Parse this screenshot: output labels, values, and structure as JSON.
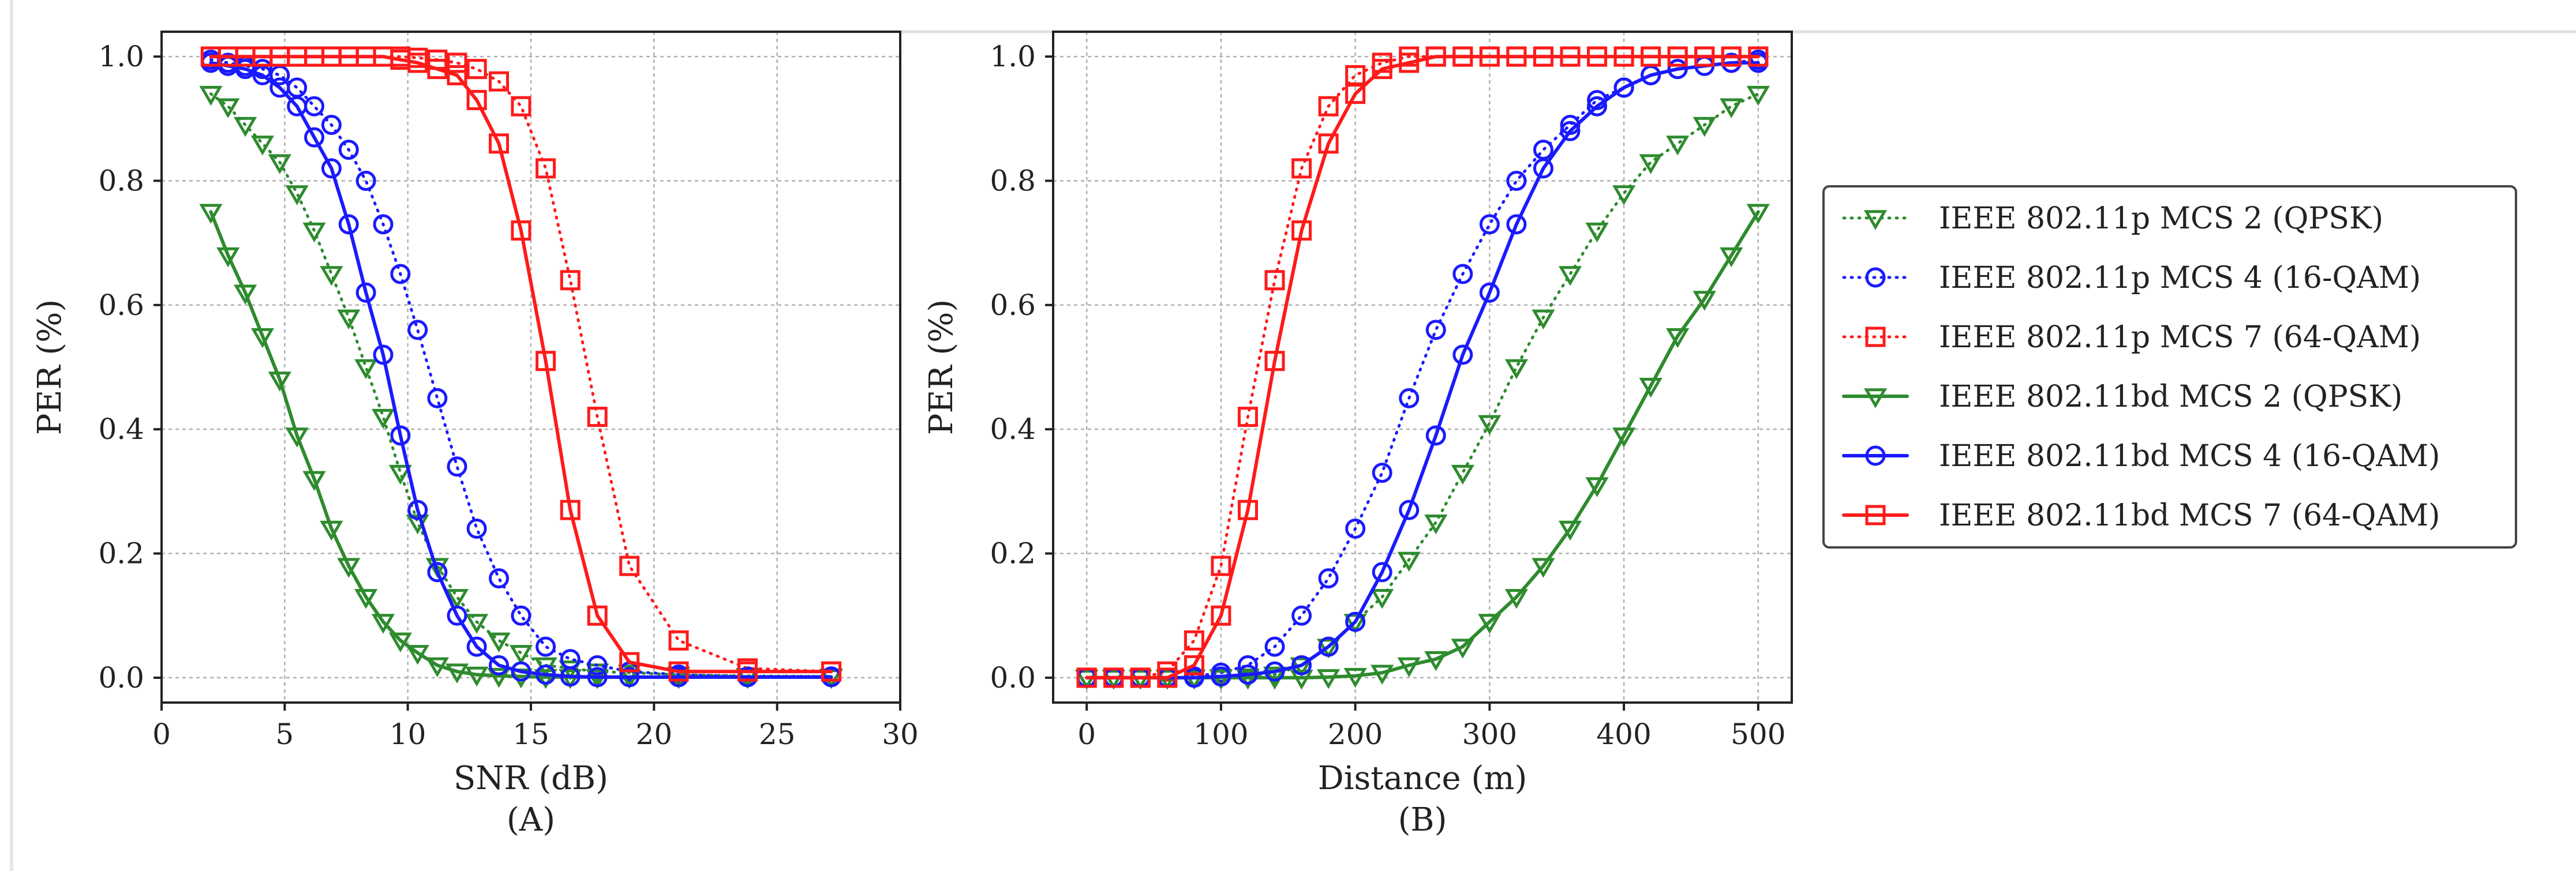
{
  "chart_data": [
    {
      "type": "line",
      "panel": "(A)",
      "xlabel": "SNR (dB)",
      "ylabel": "PER (%)",
      "xlim": [
        0,
        30
      ],
      "ylim": [
        -0.04,
        1.04
      ],
      "xticks": [
        0,
        5,
        10,
        15,
        20,
        25,
        30
      ],
      "yticks": [
        0.0,
        0.2,
        0.4,
        0.6,
        0.8,
        1.0
      ],
      "grid": true,
      "series": [
        {
          "name": "IEEE 802.11p MCS 2 (QPSK)",
          "color": "#2e8b2e",
          "style": "dotted",
          "marker": "triangle-down",
          "x": [
            2,
            2.7,
            3.4,
            4.1,
            4.8,
            5.5,
            6.2,
            6.9,
            7.6,
            8.3,
            9.0,
            9.7,
            10.4,
            11.2,
            12.0,
            12.8,
            13.7,
            14.6,
            15.6,
            16.6,
            17.7,
            19.0,
            21.0,
            23.8,
            27.2
          ],
          "y": [
            0.94,
            0.92,
            0.89,
            0.86,
            0.83,
            0.78,
            0.72,
            0.65,
            0.58,
            0.5,
            0.42,
            0.33,
            0.25,
            0.18,
            0.13,
            0.09,
            0.06,
            0.04,
            0.02,
            0.015,
            0.01,
            0.008,
            0.005,
            0.003,
            0.002
          ]
        },
        {
          "name": "IEEE 802.11p MCS 4 (16-QAM)",
          "color": "#1a1aff",
          "style": "dotted",
          "marker": "circle",
          "x": [
            2,
            2.7,
            3.4,
            4.1,
            4.8,
            5.5,
            6.2,
            6.9,
            7.6,
            8.3,
            9.0,
            9.7,
            10.4,
            11.2,
            12.0,
            12.8,
            13.7,
            14.6,
            15.6,
            16.6,
            17.7,
            19.0,
            21.0,
            23.8,
            27.2
          ],
          "y": [
            0.995,
            0.99,
            0.985,
            0.98,
            0.97,
            0.95,
            0.92,
            0.89,
            0.85,
            0.8,
            0.73,
            0.65,
            0.56,
            0.45,
            0.34,
            0.24,
            0.16,
            0.1,
            0.05,
            0.03,
            0.02,
            0.01,
            0.005,
            0.002,
            0.002
          ]
        },
        {
          "name": "IEEE 802.11p MCS 7 (64-QAM)",
          "color": "#ff1a1a",
          "style": "dotted",
          "marker": "square",
          "x": [
            2,
            2.7,
            3.4,
            4.1,
            4.8,
            5.5,
            6.2,
            6.9,
            7.6,
            8.3,
            9.0,
            9.7,
            10.4,
            11.2,
            12.0,
            12.8,
            13.7,
            14.6,
            15.6,
            16.6,
            17.7,
            19.0,
            21.0,
            23.8,
            27.2
          ],
          "y": [
            1,
            1,
            1,
            1,
            1,
            1,
            1,
            1,
            1,
            1,
            1,
            1,
            0.998,
            0.995,
            0.99,
            0.98,
            0.96,
            0.92,
            0.82,
            0.64,
            0.42,
            0.18,
            0.06,
            0.015,
            0.01
          ]
        },
        {
          "name": "IEEE 802.11bd MCS 2 (QPSK)",
          "color": "#2e8b2e",
          "style": "solid",
          "marker": "triangle-down",
          "x": [
            2,
            2.7,
            3.4,
            4.1,
            4.8,
            5.5,
            6.2,
            6.9,
            7.6,
            8.3,
            9.0,
            9.7,
            10.4,
            11.2,
            12.0,
            12.8,
            13.7,
            14.6,
            15.6,
            16.6,
            17.7,
            19.0,
            21.0,
            23.8,
            27.2
          ],
          "y": [
            0.75,
            0.68,
            0.62,
            0.55,
            0.48,
            0.39,
            0.32,
            0.24,
            0.18,
            0.13,
            0.09,
            0.06,
            0.04,
            0.02,
            0.01,
            0.005,
            0.003,
            0.002,
            0.001,
            0.001,
            0.001,
            0.001,
            0.001,
            0.001,
            0.001
          ]
        },
        {
          "name": "IEEE 802.11bd MCS 4 (16-QAM)",
          "color": "#1a1aff",
          "style": "solid",
          "marker": "circle",
          "x": [
            2,
            2.7,
            3.4,
            4.1,
            4.8,
            5.5,
            6.2,
            6.9,
            7.6,
            8.3,
            9.0,
            9.7,
            10.4,
            11.2,
            12.0,
            12.8,
            13.7,
            14.6,
            15.6,
            16.6,
            17.7,
            19.0,
            21.0,
            23.8,
            27.2
          ],
          "y": [
            0.99,
            0.985,
            0.98,
            0.97,
            0.95,
            0.92,
            0.87,
            0.82,
            0.73,
            0.62,
            0.52,
            0.39,
            0.27,
            0.17,
            0.1,
            0.05,
            0.02,
            0.01,
            0.005,
            0.002,
            0.001,
            0.001,
            0.001,
            0.001,
            0.001
          ]
        },
        {
          "name": "IEEE 802.11bd MCS 7 (64-QAM)",
          "color": "#ff1a1a",
          "style": "solid",
          "marker": "square",
          "x": [
            2,
            2.7,
            3.4,
            4.1,
            4.8,
            5.5,
            6.2,
            6.9,
            7.6,
            8.3,
            9.0,
            9.7,
            10.4,
            11.2,
            12.0,
            12.8,
            13.7,
            14.6,
            15.6,
            16.6,
            17.7,
            19.0,
            21.0,
            23.8,
            27.2
          ],
          "y": [
            1,
            1,
            1,
            1,
            1,
            1,
            1,
            1,
            1,
            1,
            1,
            0.995,
            0.99,
            0.98,
            0.97,
            0.93,
            0.86,
            0.72,
            0.51,
            0.27,
            0.1,
            0.025,
            0.01,
            0.01,
            0.01
          ]
        }
      ]
    },
    {
      "type": "line",
      "panel": "(B)",
      "xlabel": "Distance (m)",
      "ylabel": "PER (%)",
      "xlim": [
        -25,
        525
      ],
      "ylim": [
        -0.04,
        1.04
      ],
      "xticks": [
        0,
        100,
        200,
        300,
        400,
        500
      ],
      "yticks": [
        0.0,
        0.2,
        0.4,
        0.6,
        0.8,
        1.0
      ],
      "grid": true,
      "series": [
        {
          "name": "IEEE 802.11p MCS 2 (QPSK)",
          "color": "#2e8b2e",
          "style": "dotted",
          "marker": "triangle-down",
          "x": [
            0,
            20,
            40,
            60,
            80,
            100,
            120,
            140,
            160,
            180,
            200,
            220,
            240,
            260,
            280,
            300,
            320,
            340,
            360,
            380,
            400,
            420,
            440,
            460,
            480,
            500
          ],
          "y": [
            0,
            0,
            0,
            0,
            0,
            0.001,
            0.002,
            0.005,
            0.02,
            0.05,
            0.09,
            0.13,
            0.19,
            0.25,
            0.33,
            0.41,
            0.5,
            0.58,
            0.65,
            0.72,
            0.78,
            0.83,
            0.86,
            0.89,
            0.92,
            0.94
          ]
        },
        {
          "name": "IEEE 802.11p MCS 4 (16-QAM)",
          "color": "#1a1aff",
          "style": "dotted",
          "marker": "circle",
          "x": [
            0,
            20,
            40,
            60,
            80,
            100,
            120,
            140,
            160,
            180,
            200,
            220,
            240,
            260,
            280,
            300,
            320,
            340,
            360,
            380,
            400,
            420,
            440,
            460,
            480,
            500
          ],
          "y": [
            0,
            0,
            0,
            0,
            0.002,
            0.008,
            0.02,
            0.05,
            0.1,
            0.16,
            0.24,
            0.33,
            0.45,
            0.56,
            0.65,
            0.73,
            0.8,
            0.85,
            0.89,
            0.93,
            0.95,
            0.97,
            0.98,
            0.985,
            0.99,
            0.995
          ]
        },
        {
          "name": "IEEE 802.11p MCS 7 (64-QAM)",
          "color": "#ff1a1a",
          "style": "dotted",
          "marker": "square",
          "x": [
            0,
            20,
            40,
            60,
            80,
            100,
            120,
            140,
            160,
            180,
            200,
            220,
            240,
            260,
            280,
            300,
            320,
            340,
            360,
            380,
            400,
            420,
            440,
            460,
            480,
            500
          ],
          "y": [
            0,
            0,
            0,
            0.01,
            0.06,
            0.18,
            0.42,
            0.64,
            0.82,
            0.92,
            0.97,
            0.99,
            1,
            1,
            1,
            1,
            1,
            1,
            1,
            1,
            1,
            1,
            1,
            1,
            1,
            1
          ]
        },
        {
          "name": "IEEE 802.11bd MCS 2 (QPSK)",
          "color": "#2e8b2e",
          "style": "solid",
          "marker": "triangle-down",
          "x": [
            0,
            20,
            40,
            60,
            80,
            100,
            120,
            140,
            160,
            180,
            200,
            220,
            240,
            260,
            280,
            300,
            320,
            340,
            360,
            380,
            400,
            420,
            440,
            460,
            480,
            500
          ],
          "y": [
            0,
            0,
            0,
            0,
            0,
            0,
            0,
            0,
            0,
            0.001,
            0.003,
            0.008,
            0.02,
            0.03,
            0.05,
            0.09,
            0.13,
            0.18,
            0.24,
            0.31,
            0.39,
            0.47,
            0.55,
            0.61,
            0.68,
            0.75
          ]
        },
        {
          "name": "IEEE 802.11bd MCS 4 (16-QAM)",
          "color": "#1a1aff",
          "style": "solid",
          "marker": "circle",
          "x": [
            0,
            20,
            40,
            60,
            80,
            100,
            120,
            140,
            160,
            180,
            200,
            220,
            240,
            260,
            280,
            300,
            320,
            340,
            360,
            380,
            400,
            420,
            440,
            460,
            480,
            500
          ],
          "y": [
            0,
            0,
            0,
            0,
            0,
            0.002,
            0.005,
            0.01,
            0.02,
            0.05,
            0.09,
            0.17,
            0.27,
            0.39,
            0.52,
            0.62,
            0.73,
            0.82,
            0.88,
            0.92,
            0.95,
            0.97,
            0.98,
            0.985,
            0.99,
            0.99
          ]
        },
        {
          "name": "IEEE 802.11bd MCS 7 (64-QAM)",
          "color": "#ff1a1a",
          "style": "solid",
          "marker": "square",
          "x": [
            0,
            20,
            40,
            60,
            80,
            100,
            120,
            140,
            160,
            180,
            200,
            220,
            240,
            260,
            280,
            300,
            320,
            340,
            360,
            380,
            400,
            420,
            440,
            460,
            480,
            500
          ],
          "y": [
            0,
            0,
            0,
            0,
            0.02,
            0.1,
            0.27,
            0.51,
            0.72,
            0.86,
            0.94,
            0.98,
            0.99,
            1,
            1,
            1,
            1,
            1,
            1,
            1,
            1,
            1,
            1,
            1,
            1,
            1
          ]
        }
      ]
    }
  ]
}
